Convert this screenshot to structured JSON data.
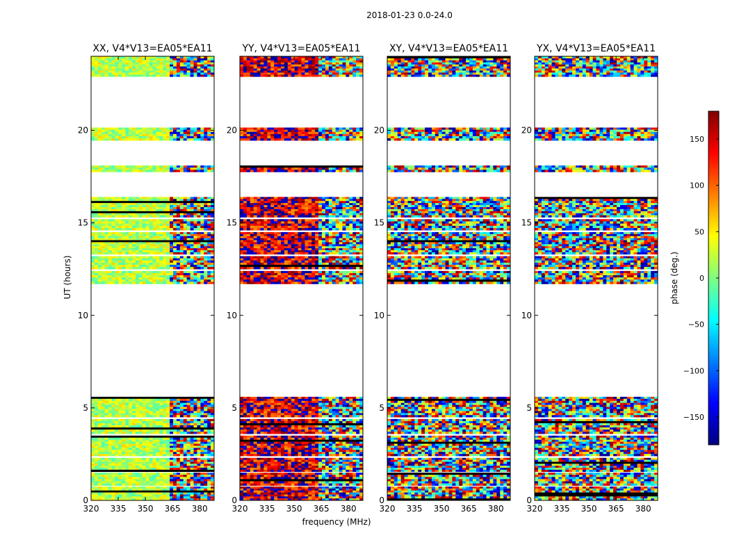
{
  "figure": {
    "suptitle": "2018-01-23 0.0-24.0"
  },
  "chart_data": {
    "type": "heatmap",
    "xlabel": "frequency (MHz)",
    "ylabel": "UT (hours)",
    "xlim": [
      320,
      388
    ],
    "ylim": [
      0,
      24
    ],
    "x_ticks": [
      320,
      335,
      350,
      365,
      380
    ],
    "y_ticks": [
      0,
      5,
      10,
      15,
      20
    ],
    "colorbar": {
      "label": "phase (deg.)",
      "range": [
        -180,
        180
      ],
      "ticks": [
        150,
        100,
        50,
        0,
        -50,
        -100,
        -150
      ],
      "tick_labels": [
        "150",
        "100",
        "50",
        "0",
        "−50",
        "−100",
        "−150"
      ],
      "colormap": "jet",
      "colors": [
        "#00007f",
        "#0000ff",
        "#007fff",
        "#00ffff",
        "#7fff7f",
        "#ffff00",
        "#ff7f00",
        "#ff0000",
        "#7f0000"
      ]
    },
    "data_time_bands_hours": [
      [
        0.0,
        0.75
      ],
      [
        0.8,
        1.5
      ],
      [
        1.55,
        2.3
      ],
      [
        2.4,
        3.5
      ],
      [
        3.6,
        4.4
      ],
      [
        4.5,
        5.6
      ],
      [
        11.7,
        12.4
      ],
      [
        12.5,
        13.2
      ],
      [
        13.3,
        14.5
      ],
      [
        14.6,
        15.2
      ],
      [
        15.3,
        16.4
      ],
      [
        17.75,
        18.1
      ],
      [
        19.45,
        20.15
      ],
      [
        22.9,
        24.0
      ]
    ],
    "panels": [
      {
        "title": "XX, V4*V13=EA05*EA11",
        "dominant_phase": "green-yellow",
        "bias": 20,
        "spread": 40
      },
      {
        "title": "YY, V4*V13=EA05*EA11",
        "dominant_phase": "red",
        "bias": 150,
        "spread": 70
      },
      {
        "title": "XY, V4*V13=EA05*EA11",
        "dominant_phase": "random",
        "bias": 0,
        "spread": 180
      },
      {
        "title": "YX, V4*V13=EA05*EA11",
        "dominant_phase": "random",
        "bias": 0,
        "spread": 180
      }
    ]
  }
}
